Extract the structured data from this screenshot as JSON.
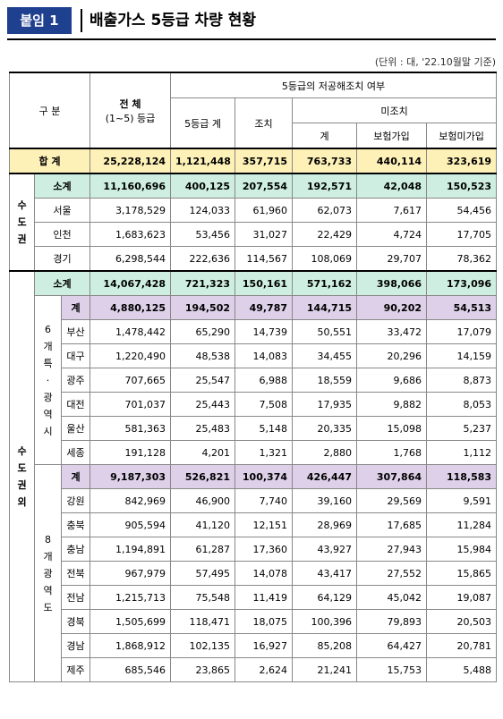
{
  "header": {
    "badge": "붙임 1",
    "title": "배출가스 5등급 차량 현황"
  },
  "unit_note": "(단위 : 대, '22.10월말 기준)",
  "columns": {
    "category": "구 분",
    "total": "전 체",
    "total_sub": "(1~5) 등급",
    "low_emission": "5등급의 저공해조치 여부",
    "grade5_total": "5등급 계",
    "measure": "조치",
    "no_measure": "미조치",
    "sum": "계",
    "insured": "보험가입",
    "uninsured": "보험미가입"
  },
  "labels": {
    "grand_total": "합 계",
    "capital": "수도권",
    "non_capital": "수도권외",
    "metro6": "6개특·광역시",
    "prov8": "8개광역도",
    "subtotal": "소계",
    "gye": "계"
  },
  "grand_total": [
    "25,228,124",
    "1,121,448",
    "357,715",
    "763,733",
    "440,114",
    "323,619"
  ],
  "capital_subtotal": [
    "11,160,696",
    "400,125",
    "207,554",
    "192,571",
    "42,048",
    "150,523"
  ],
  "capital_rows": [
    {
      "name": "서울",
      "v": [
        "3,178,529",
        "124,033",
        "61,960",
        "62,073",
        "7,617",
        "54,456"
      ]
    },
    {
      "name": "인천",
      "v": [
        "1,683,623",
        "53,456",
        "31,027",
        "22,429",
        "4,724",
        "17,705"
      ]
    },
    {
      "name": "경기",
      "v": [
        "6,298,544",
        "222,636",
        "114,567",
        "108,069",
        "29,707",
        "78,362"
      ]
    }
  ],
  "noncap_subtotal": [
    "14,067,428",
    "721,323",
    "150,161",
    "571,162",
    "398,066",
    "173,096"
  ],
  "metro_total": [
    "4,880,125",
    "194,502",
    "49,787",
    "144,715",
    "90,202",
    "54,513"
  ],
  "metro_rows": [
    {
      "name": "부산",
      "v": [
        "1,478,442",
        "65,290",
        "14,739",
        "50,551",
        "33,472",
        "17,079"
      ]
    },
    {
      "name": "대구",
      "v": [
        "1,220,490",
        "48,538",
        "14,083",
        "34,455",
        "20,296",
        "14,159"
      ]
    },
    {
      "name": "광주",
      "v": [
        "707,665",
        "25,547",
        "6,988",
        "18,559",
        "9,686",
        "8,873"
      ]
    },
    {
      "name": "대전",
      "v": [
        "701,037",
        "25,443",
        "7,508",
        "17,935",
        "9,882",
        "8,053"
      ]
    },
    {
      "name": "울산",
      "v": [
        "581,363",
        "25,483",
        "5,148",
        "20,335",
        "15,098",
        "5,237"
      ]
    },
    {
      "name": "세종",
      "v": [
        "191,128",
        "4,201",
        "1,321",
        "2,880",
        "1,768",
        "1,112"
      ]
    }
  ],
  "prov_total": [
    "9,187,303",
    "526,821",
    "100,374",
    "426,447",
    "307,864",
    "118,583"
  ],
  "prov_rows": [
    {
      "name": "강원",
      "v": [
        "842,969",
        "46,900",
        "7,740",
        "39,160",
        "29,569",
        "9,591"
      ]
    },
    {
      "name": "충북",
      "v": [
        "905,594",
        "41,120",
        "12,151",
        "28,969",
        "17,685",
        "11,284"
      ]
    },
    {
      "name": "충남",
      "v": [
        "1,194,891",
        "61,287",
        "17,360",
        "43,927",
        "27,943",
        "15,984"
      ]
    },
    {
      "name": "전북",
      "v": [
        "967,979",
        "57,495",
        "14,078",
        "43,417",
        "27,552",
        "15,865"
      ]
    },
    {
      "name": "전남",
      "v": [
        "1,215,713",
        "75,548",
        "11,419",
        "64,129",
        "45,042",
        "19,087"
      ]
    },
    {
      "name": "경북",
      "v": [
        "1,505,699",
        "118,471",
        "18,075",
        "100,396",
        "79,893",
        "20,503"
      ]
    },
    {
      "name": "경남",
      "v": [
        "1,868,912",
        "102,135",
        "16,927",
        "85,208",
        "64,427",
        "20,781"
      ]
    },
    {
      "name": "제주",
      "v": [
        "685,546",
        "23,865",
        "2,624",
        "21,241",
        "15,753",
        "5,488"
      ]
    }
  ]
}
